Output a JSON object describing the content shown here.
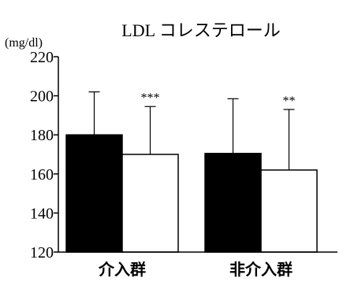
{
  "chart_data": {
    "type": "bar",
    "title": "LDL コレステロール",
    "unit": "(mg/dl)",
    "categories": [
      "介入群",
      "非介入群"
    ],
    "series": [
      {
        "fill": "#000000",
        "values": [
          180,
          170.5
        ],
        "error_upper": [
          202,
          198.5
        ]
      },
      {
        "fill": "#ffffff",
        "values": [
          170,
          162
        ],
        "error_upper": [
          194.5,
          193
        ],
        "significance": [
          "***",
          "**"
        ]
      }
    ],
    "ylim": [
      120,
      220
    ],
    "yticks": [
      "120",
      "140",
      "160",
      "180",
      "200",
      "220"
    ],
    "grid": false,
    "legend": "none"
  }
}
